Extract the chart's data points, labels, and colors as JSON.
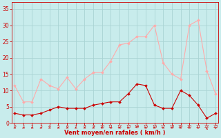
{
  "x": [
    0,
    1,
    2,
    3,
    4,
    5,
    6,
    7,
    8,
    9,
    10,
    11,
    12,
    13,
    14,
    15,
    16,
    17,
    18,
    19,
    20,
    21,
    22,
    23
  ],
  "wind_avg": [
    3,
    2.5,
    2.5,
    3,
    4,
    5,
    4.5,
    4.5,
    4.5,
    5.5,
    6,
    6.5,
    6.5,
    9,
    12,
    11.5,
    5.5,
    4.5,
    4.5,
    10,
    8.5,
    5.5,
    1.5,
    3
  ],
  "wind_gust": [
    11.5,
    6.5,
    6.5,
    13.5,
    11.5,
    10.5,
    14,
    10.5,
    13.5,
    15.5,
    15.5,
    19,
    24,
    24.5,
    26.5,
    26.5,
    30,
    18.5,
    15,
    13.5,
    30,
    31.5,
    16,
    9
  ],
  "color_avg": "#cc0000",
  "color_gust": "#ffaaaa",
  "bg_color": "#c8ecec",
  "grid_color": "#aad4d4",
  "xlabel": "Vent moyen/en rafales ( km/h )",
  "xlabel_color": "#cc0000",
  "tick_color": "#cc0000",
  "ylim": [
    0,
    37
  ],
  "xlim": [
    -0.3,
    23.3
  ],
  "yticks": [
    0,
    5,
    10,
    15,
    20,
    25,
    30,
    35
  ]
}
